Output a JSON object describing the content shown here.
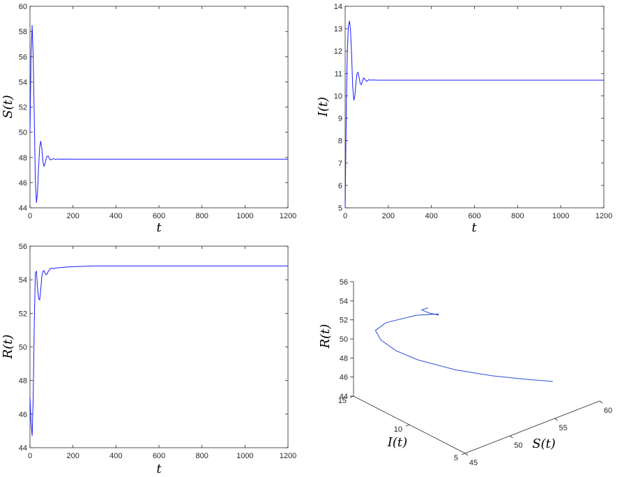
{
  "chart_data": [
    {
      "id": "S",
      "type": "line",
      "ylabel": "S(t)",
      "xlabel": "t",
      "xlim": [
        0,
        1200
      ],
      "ylim": [
        44,
        60
      ],
      "xticks": [
        0,
        200,
        400,
        600,
        800,
        1000,
        1200
      ],
      "yticks": [
        44,
        46,
        48,
        50,
        52,
        54,
        56,
        58,
        60
      ],
      "series": [
        {
          "x": [
            0,
            5,
            10,
            15,
            20,
            25,
            30,
            35,
            40,
            45,
            50,
            55,
            60,
            65,
            70,
            75,
            80,
            85,
            90,
            95,
            100,
            110,
            120,
            130,
            140,
            150,
            200,
            300,
            1200
          ],
          "values": [
            50,
            56,
            58.5,
            56,
            51,
            46.2,
            44.4,
            45.2,
            47.2,
            48.8,
            49.3,
            48.7,
            47.7,
            47.3,
            47.5,
            47.9,
            48.1,
            48.1,
            47.9,
            47.8,
            47.85,
            47.9,
            47.85,
            47.88,
            47.85,
            47.87,
            47.86,
            47.86,
            47.86
          ]
        }
      ]
    },
    {
      "id": "I",
      "type": "line",
      "ylabel": "I(t)",
      "xlabel": "t",
      "xlim": [
        0,
        1200
      ],
      "ylim": [
        5,
        14
      ],
      "xticks": [
        0,
        200,
        400,
        600,
        800,
        1000,
        1200
      ],
      "yticks": [
        5,
        6,
        7,
        8,
        9,
        10,
        11,
        12,
        13,
        14
      ],
      "series": [
        {
          "x": [
            0,
            3,
            6,
            10,
            15,
            20,
            25,
            30,
            35,
            40,
            45,
            50,
            55,
            60,
            65,
            70,
            75,
            80,
            85,
            90,
            95,
            100,
            110,
            120,
            130,
            150,
            200,
            1200
          ],
          "values": [
            5,
            7.5,
            10,
            12,
            13.1,
            13.35,
            12.9,
            11.8,
            10.4,
            9.8,
            10.0,
            10.6,
            11.0,
            11.05,
            10.8,
            10.55,
            10.5,
            10.65,
            10.8,
            10.75,
            10.7,
            10.65,
            10.72,
            10.7,
            10.71,
            10.7,
            10.7,
            10.7
          ]
        }
      ]
    },
    {
      "id": "R",
      "type": "line",
      "ylabel": "R(t)",
      "xlabel": "t",
      "xlim": [
        0,
        1200
      ],
      "ylim": [
        44,
        56
      ],
      "xticks": [
        0,
        200,
        400,
        600,
        800,
        1000,
        1200
      ],
      "yticks": [
        44,
        46,
        48,
        50,
        52,
        54,
        56
      ],
      "series": [
        {
          "x": [
            0,
            5,
            10,
            15,
            20,
            25,
            30,
            35,
            40,
            45,
            50,
            55,
            60,
            65,
            70,
            75,
            80,
            85,
            90,
            100,
            110,
            120,
            140,
            160,
            200,
            250,
            300,
            1200
          ],
          "values": [
            47,
            45.5,
            44.7,
            47,
            51.5,
            54.4,
            54.5,
            53.5,
            52.9,
            52.8,
            53.4,
            54.2,
            54.5,
            54.55,
            54.4,
            54.3,
            54.35,
            54.5,
            54.6,
            54.7,
            54.65,
            54.7,
            54.72,
            54.75,
            54.78,
            54.8,
            54.82,
            54.82
          ]
        }
      ]
    },
    {
      "id": "SIR-3d",
      "type": "line3d",
      "xlabel": "S(t)",
      "ylabel": "I(t)",
      "zlabel": "R(t)",
      "xlim": [
        45,
        60
      ],
      "ylim": [
        5,
        15
      ],
      "zlim": [
        44,
        56
      ],
      "xticks": [
        45,
        50,
        55,
        60
      ],
      "yticks": [
        5,
        10,
        15
      ],
      "zticks": [
        44,
        46,
        48,
        50,
        52,
        54,
        56
      ],
      "series": [
        {
          "S": [
            58.5,
            56.0,
            53.0,
            50.0,
            47.3,
            46.0,
            45.3,
            45.2,
            46.0,
            48.0,
            49.2,
            48.5,
            47.8,
            47.5,
            47.9,
            47.86
          ],
          "I": [
            8.0,
            8.4,
            9.0,
            9.9,
            11.1,
            12.0,
            12.8,
            13.2,
            12.9,
            11.8,
            10.8,
            10.2,
            10.5,
            10.9,
            10.7,
            10.7
          ],
          "R": [
            44.8,
            45.7,
            46.8,
            48.0,
            49.3,
            50.2,
            51.1,
            51.9,
            52.6,
            53.3,
            53.6,
            54.1,
            54.4,
            54.6,
            54.75,
            54.82
          ]
        }
      ]
    }
  ]
}
